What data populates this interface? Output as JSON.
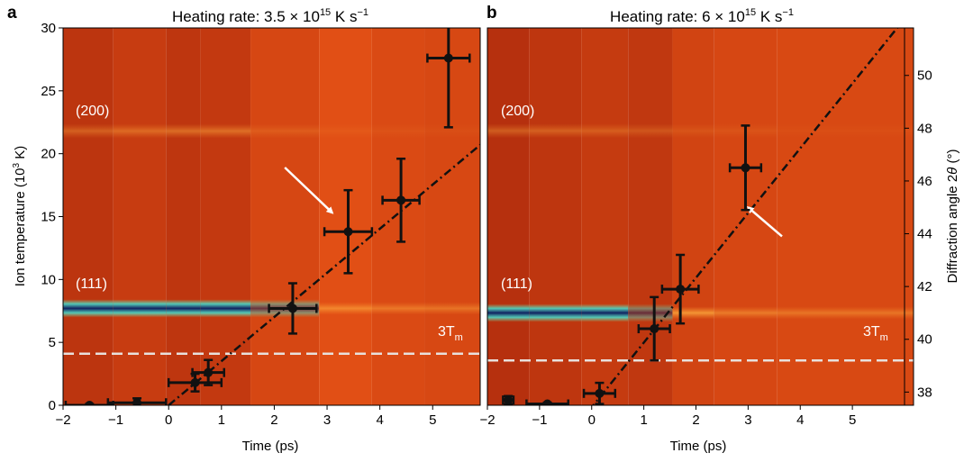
{
  "panels": [
    {
      "letter": "a",
      "title_prefix": "Heating rate: 3.5 × 10",
      "title_exp": "15",
      "title_suffix": " K s",
      "title_unit_exp": "−1",
      "peak_labels": {
        "p200": "(200)",
        "p111": "(111)"
      },
      "melt_label": "3T",
      "melt_sub": "m"
    },
    {
      "letter": "b",
      "title_prefix": "Heating rate: 6 × 10",
      "title_exp": "15",
      "title_suffix": " K s",
      "title_unit_exp": "−1",
      "peak_labels": {
        "p200": "(200)",
        "p111": "(111)"
      },
      "melt_label": "3T",
      "melt_sub": "m"
    }
  ],
  "axes": {
    "xlabel": "Time (ps)",
    "ylabel_left": "Ion temperature (10",
    "ylabel_left_exp": "3",
    "ylabel_left_end": " K)",
    "ylabel_right": "Diffraction angle 2",
    "ylabel_right_theta": "θ",
    "ylabel_right_end": " (°)"
  },
  "chart_data": [
    {
      "type": "scatter",
      "panel": "a",
      "xlim": [
        -2,
        5.9
      ],
      "ylim": [
        0,
        30
      ],
      "x_ticks": [
        -2,
        -1,
        0,
        1,
        2,
        3,
        4,
        5
      ],
      "x_tick_labels": [
        "−2",
        "−1",
        "0",
        "1",
        "2",
        "3",
        "4",
        "5"
      ],
      "y_ticks": [
        0,
        5,
        10,
        15,
        20,
        25,
        30
      ],
      "y_tick_labels": [
        "0",
        "5",
        "10",
        "15",
        "20",
        "25",
        "30"
      ],
      "points": [
        {
          "x": -1.5,
          "y": 0.0,
          "xerr": 0.45,
          "yerr": 0.1
        },
        {
          "x": -0.6,
          "y": 0.2,
          "xerr": 0.55,
          "yerr": 0.35
        },
        {
          "x": 0.5,
          "y": 1.8,
          "xerr": 0.5,
          "yerr": 0.7
        },
        {
          "x": 0.75,
          "y": 2.6,
          "xerr": 0.3,
          "yerr": 1.0
        },
        {
          "x": 2.35,
          "y": 7.7,
          "xerr": 0.45,
          "yerr": 2.0
        },
        {
          "x": 3.4,
          "y": 13.8,
          "xerr": 0.45,
          "yerr": 3.3
        },
        {
          "x": 4.4,
          "y": 16.3,
          "xerr": 0.35,
          "yerr": 3.3
        },
        {
          "x": 5.3,
          "y": 27.6,
          "xerr": 0.4,
          "yerr": 5.5
        }
      ],
      "fit_line": {
        "x": [
          0,
          5.9
        ],
        "y": [
          0,
          20.7
        ]
      },
      "melt_threshold_y": 4.1,
      "arrow": {
        "from": [
          2.2,
          18.9
        ],
        "to": [
          3.1,
          15.3
        ]
      },
      "background": {
        "columns": [
          {
            "x0": -2.0,
            "x1": -1.05,
            "brightness": 0.58
          },
          {
            "x0": -1.05,
            "x1": -0.05,
            "brightness": 0.68
          },
          {
            "x0": -0.05,
            "x1": 0.6,
            "brightness": 0.6
          },
          {
            "x0": 0.6,
            "x1": 1.55,
            "brightness": 0.64
          },
          {
            "x0": 1.55,
            "x1": 2.85,
            "brightness": 0.83
          },
          {
            "x0": 2.85,
            "x1": 3.85,
            "brightness": 0.93
          },
          {
            "x0": 3.85,
            "x1": 4.85,
            "brightness": 0.87
          },
          {
            "x0": 4.85,
            "x1": 5.9,
            "brightness": 0.84
          }
        ],
        "band_200_y": 21.8,
        "band_111_y": 7.7,
        "band_111_intensity": [
          1.0,
          1.0,
          1.0,
          1.0,
          0.55,
          0.18,
          0.05,
          0.02
        ],
        "band_200_intensity": [
          0.35,
          0.4,
          0.45,
          0.45,
          0.2,
          0.1,
          0.08,
          0.06
        ]
      }
    },
    {
      "type": "scatter",
      "panel": "b",
      "xlim": [
        -2,
        6.0
      ],
      "ylim": [
        37.5,
        51.8
      ],
      "right_axis_label": "Diffraction angle 2θ (°)",
      "x_ticks": [
        -2,
        -1,
        0,
        1,
        2,
        3,
        4,
        5
      ],
      "x_tick_labels": [
        "−2",
        "−1",
        "0",
        "1",
        "2",
        "3",
        "4",
        "5"
      ],
      "y_ticks": [
        38,
        40,
        42,
        44,
        46,
        48,
        50
      ],
      "y_tick_labels": [
        "38",
        "40",
        "42",
        "44",
        "46",
        "48",
        "50"
      ],
      "points": [
        {
          "x": -1.6,
          "y": 37.7,
          "xerr": 0.1,
          "yerr": 0.15
        },
        {
          "x": -0.85,
          "y": 37.55,
          "xerr": 0.4,
          "yerr": 0.05
        },
        {
          "x": 0.15,
          "y": 37.95,
          "xerr": 0.3,
          "yerr": 0.4
        },
        {
          "x": 1.2,
          "y": 40.4,
          "xerr": 0.3,
          "yerr": 1.2
        },
        {
          "x": 1.7,
          "y": 41.9,
          "xerr": 0.35,
          "yerr": 1.3
        },
        {
          "x": 2.95,
          "y": 46.5,
          "xerr": 0.3,
          "yerr": 1.6
        }
      ],
      "fit_line": {
        "x": [
          -0.05,
          5.9
        ],
        "y": [
          37.3,
          51.9
        ]
      },
      "melt_threshold_y": 39.2,
      "arrow": {
        "from": [
          3.65,
          43.9
        ],
        "to": [
          3.0,
          45.0
        ]
      },
      "background": {
        "columns": [
          {
            "x0": -2.0,
            "x1": -1.2,
            "brightness": 0.52
          },
          {
            "x0": -1.2,
            "x1": -0.2,
            "brightness": 0.6
          },
          {
            "x0": -0.2,
            "x1": 0.7,
            "brightness": 0.66
          },
          {
            "x0": 0.7,
            "x1": 1.55,
            "brightness": 0.62
          },
          {
            "x0": 1.55,
            "x1": 2.35,
            "brightness": 0.78
          },
          {
            "x0": 2.35,
            "x1": 3.55,
            "brightness": 0.83
          },
          {
            "x0": 3.55,
            "x1": 6.0,
            "brightness": 0.85
          }
        ],
        "band_200_y": 47.9,
        "band_111_y": 41.0,
        "band_111_intensity": [
          1.0,
          1.0,
          1.0,
          0.5,
          0.35,
          0.1,
          0.03
        ],
        "band_200_intensity": [
          0.35,
          0.35,
          0.3,
          0.25,
          0.15,
          0.12,
          0.05
        ]
      }
    }
  ]
}
